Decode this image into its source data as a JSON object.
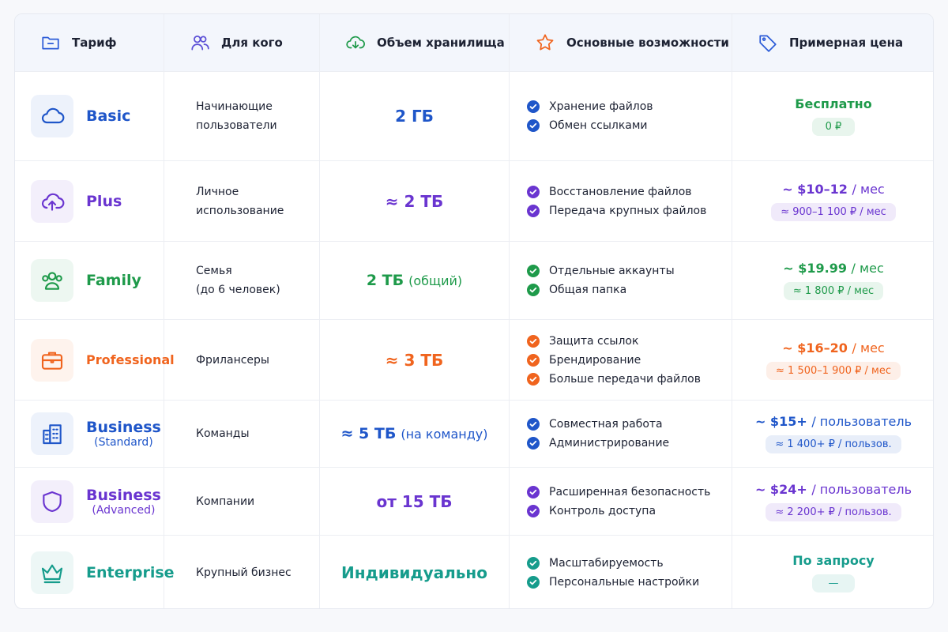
{
  "table": {
    "headers": [
      "Тариф",
      "Для кого",
      "Объем хранилища",
      "Основные возможности",
      "Примерная цена"
    ],
    "rows": [
      {
        "plan": "Basic",
        "color": "#1f56c9",
        "audience": [
          "Начинающие",
          "пользователи"
        ],
        "storage": "2 ГБ",
        "features": [
          "Хранение файлов",
          "Обмен ссылками"
        ],
        "price": "Бесплатно",
        "price_badge": "0 ₽",
        "price_color": "#1e9a4a"
      },
      {
        "plan": "Plus",
        "color": "#6a35d0",
        "audience": [
          "Личное",
          "использование"
        ],
        "storage": "≈ 2 ТБ",
        "features": [
          "Восстановление файлов",
          "Передача крупных файлов"
        ],
        "price": "~ $10–12",
        "price_unit": "/ мес",
        "price_badge": "≈ 900–1 100 ₽ / мес"
      },
      {
        "plan": "Family",
        "color": "#1e9a4a",
        "audience": [
          "Семья",
          "(до 6 человек)"
        ],
        "storage": "2 ТБ",
        "storage_note": "(общий)",
        "features": [
          "Отдельные аккаунты",
          "Общая папка"
        ],
        "price": "~ $19.99",
        "price_unit": "/ мес",
        "price_badge": "≈ 1 800 ₽ / мес"
      },
      {
        "plan": "Professional",
        "color": "#f0641e",
        "audience": [
          "Фрилансеры"
        ],
        "storage": "≈ 3 ТБ",
        "features": [
          "Защита ссылок",
          "Брендирование",
          "Больше передачи файлов"
        ],
        "price": "~ $16–20",
        "price_unit": "/ мес",
        "price_badge": "≈ 1 500–1 900 ₽ / мес"
      },
      {
        "plan": "Business",
        "plan_sub": "(Standard)",
        "color": "#1f56c9",
        "audience": [
          "Команды"
        ],
        "storage": "≈ 5 ТБ",
        "storage_note": "(на команду)",
        "features": [
          "Совместная работа",
          "Администрирование"
        ],
        "price": "~ $15+",
        "price_unit": "/ пользователь",
        "price_badge": "≈ 1 400+ ₽ / пользов."
      },
      {
        "plan": "Business",
        "plan_sub": "(Advanced)",
        "color": "#6a35d0",
        "audience": [
          "Компании"
        ],
        "storage": "от 15 ТБ",
        "features": [
          "Расширенная безопасность",
          "Контроль доступа"
        ],
        "price": "~ $24+",
        "price_unit": "/ пользователь",
        "price_badge": "≈ 2 200+ ₽ / пользов."
      },
      {
        "plan": "Enterprise",
        "color": "#169c8c",
        "audience": [
          "Крупный бизнес"
        ],
        "storage": "Индивидуально",
        "features": [
          "Масштабируемость",
          "Персональные настройки"
        ],
        "price": "По запросу",
        "price_badge": "—"
      }
    ]
  }
}
